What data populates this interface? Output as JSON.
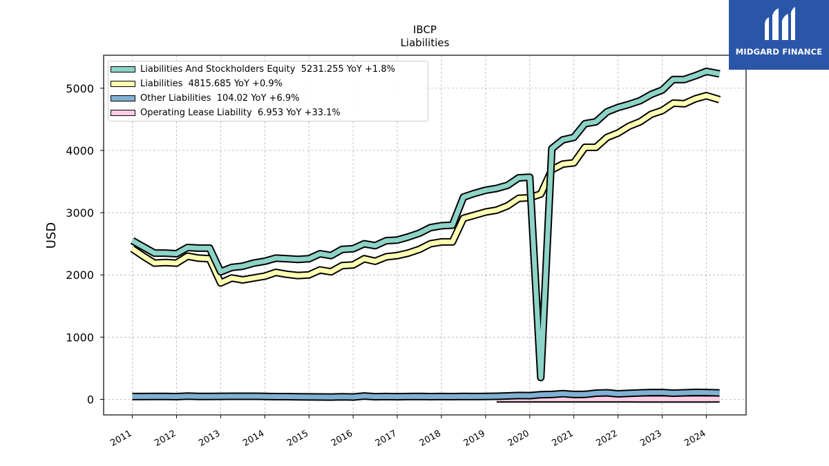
{
  "brand": {
    "name": "MIDGARD FINANCE",
    "color": "#2a56a8"
  },
  "chart_data": {
    "type": "line",
    "title": "IBCP",
    "subtitle": "Liabilities",
    "ylabel": "USD",
    "xlabel": "",
    "ylim": [
      -250,
      5530
    ],
    "xlim": [
      2010.35,
      2024.9
    ],
    "yticks": [
      0,
      1000,
      2000,
      3000,
      4000,
      5000
    ],
    "xticks": [
      2011,
      2012,
      2013,
      2014,
      2015,
      2016,
      2017,
      2018,
      2019,
      2020,
      2021,
      2022,
      2023,
      2024
    ],
    "grid": true,
    "legend_position": "top-left",
    "series": [
      {
        "name": "Liabilities And Stockholders Equity",
        "legend": "Liabilities And Stockholders Equity  5231.255 YoY +1.8%",
        "color": "#8dd3c7",
        "x": [
          2011.0,
          2011.25,
          2011.5,
          2011.75,
          2012.0,
          2012.25,
          2012.5,
          2012.75,
          2013.0,
          2013.25,
          2013.5,
          2013.75,
          2014.0,
          2014.25,
          2014.5,
          2014.75,
          2015.0,
          2015.25,
          2015.5,
          2015.75,
          2016.0,
          2016.25,
          2016.5,
          2016.75,
          2017.0,
          2017.25,
          2017.5,
          2017.75,
          2018.0,
          2018.25,
          2018.5,
          2018.75,
          2019.0,
          2019.25,
          2019.5,
          2019.75,
          2020.0,
          2020.25,
          2020.5,
          2020.75,
          2021.0,
          2021.25,
          2021.5,
          2021.75,
          2022.0,
          2022.25,
          2022.5,
          2022.75,
          2023.0,
          2023.25,
          2023.5,
          2023.75,
          2024.0,
          2024.3
        ],
        "values": [
          2550,
          2450,
          2350,
          2350,
          2340,
          2440,
          2430,
          2430,
          2050,
          2120,
          2140,
          2190,
          2220,
          2270,
          2260,
          2250,
          2260,
          2340,
          2310,
          2410,
          2420,
          2500,
          2470,
          2550,
          2560,
          2610,
          2670,
          2760,
          2790,
          2800,
          3250,
          3310,
          3360,
          3390,
          3440,
          3560,
          3570,
          350,
          4030,
          4170,
          4210,
          4430,
          4460,
          4620,
          4690,
          4740,
          4800,
          4900,
          4970,
          5140,
          5140,
          5200,
          5270,
          5231
        ]
      },
      {
        "name": "Liabilities",
        "legend": "Liabilities  4815.685 YoY +0.9%",
        "color": "#ffffb3",
        "x": [
          2011.0,
          2011.25,
          2011.5,
          2011.75,
          2012.0,
          2012.25,
          2012.5,
          2012.75,
          2013.0,
          2013.25,
          2013.5,
          2013.75,
          2014.0,
          2014.25,
          2014.5,
          2014.75,
          2015.0,
          2015.25,
          2015.5,
          2015.75,
          2016.0,
          2016.25,
          2016.5,
          2016.75,
          2017.0,
          2017.25,
          2017.5,
          2017.75,
          2018.0,
          2018.25,
          2018.5,
          2018.75,
          2019.0,
          2019.25,
          2019.5,
          2019.75,
          2020.0,
          2020.25,
          2020.5,
          2020.75,
          2021.0,
          2021.25,
          2021.5,
          2021.75,
          2022.0,
          2022.25,
          2022.5,
          2022.75,
          2023.0,
          2023.25,
          2023.5,
          2023.75,
          2024.0,
          2024.3
        ],
        "values": [
          2420,
          2300,
          2190,
          2200,
          2190,
          2300,
          2270,
          2260,
          1870,
          1950,
          1920,
          1950,
          1980,
          2040,
          2010,
          1990,
          2000,
          2080,
          2050,
          2150,
          2160,
          2260,
          2220,
          2290,
          2310,
          2350,
          2410,
          2500,
          2530,
          2530,
          2910,
          2960,
          3010,
          3040,
          3110,
          3230,
          3240,
          3300,
          3690,
          3780,
          3800,
          4050,
          4050,
          4210,
          4280,
          4390,
          4460,
          4580,
          4640,
          4760,
          4750,
          4830,
          4880,
          4816
        ]
      },
      {
        "name": "Other Liabilities",
        "legend": "Other Liabilities  104.02 YoY +6.9%",
        "color": "#80b1d3",
        "x": [
          2011.0,
          2011.25,
          2011.5,
          2011.75,
          2012.0,
          2012.25,
          2012.5,
          2012.75,
          2013.0,
          2013.25,
          2013.5,
          2013.75,
          2014.0,
          2014.25,
          2014.5,
          2014.75,
          2015.0,
          2015.25,
          2015.5,
          2015.75,
          2016.0,
          2016.25,
          2016.5,
          2016.75,
          2017.0,
          2017.25,
          2017.5,
          2017.75,
          2018.0,
          2018.25,
          2018.5,
          2018.75,
          2019.0,
          2019.25,
          2019.5,
          2019.75,
          2020.0,
          2020.25,
          2020.5,
          2020.75,
          2021.0,
          2021.25,
          2021.5,
          2021.75,
          2022.0,
          2022.25,
          2022.5,
          2022.75,
          2023.0,
          2023.25,
          2023.5,
          2023.75,
          2024.0,
          2024.3
        ],
        "values": [
          45,
          45,
          46,
          46,
          44,
          52,
          46,
          46,
          48,
          50,
          50,
          49,
          47,
          44,
          44,
          42,
          40,
          39,
          37,
          41,
          37,
          54,
          43,
          45,
          43,
          45,
          47,
          44,
          45,
          44,
          47,
          45,
          47,
          50,
          55,
          62,
          60,
          75,
          78,
          92,
          78,
          80,
          100,
          105,
          88,
          96,
          104,
          110,
          110,
          100,
          105,
          112,
          110,
          104
        ]
      },
      {
        "name": "Operating Lease Liability",
        "legend": "Operating Lease Liability  6.953 YoY +33.1%",
        "color": "#fccde5",
        "x": [
          2019.25,
          2019.5,
          2019.75,
          2020.0,
          2020.25,
          2020.5,
          2020.75,
          2021.0,
          2021.25,
          2021.5,
          2021.75,
          2022.0,
          2022.25,
          2022.5,
          2022.75,
          2023.0,
          2023.25,
          2023.5,
          2023.75,
          2024.0,
          2024.3
        ],
        "values": [
          7,
          7,
          7,
          7,
          7,
          7,
          7,
          7,
          7,
          7,
          7,
          7,
          7,
          6,
          6,
          6,
          6,
          6,
          6,
          6,
          7
        ]
      }
    ]
  }
}
